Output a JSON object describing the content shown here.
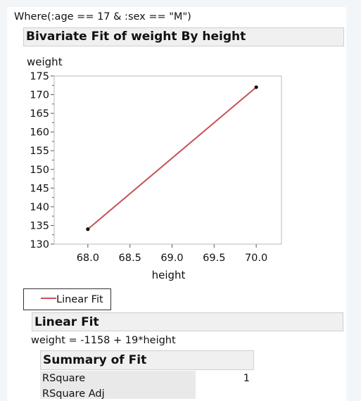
{
  "where_clause": "Where(:age == 17 & :sex == \"M\")",
  "report": {
    "title": "Bivariate Fit of weight By height"
  },
  "chart_data": {
    "type": "line",
    "xlabel": "height",
    "ylabel": "weight",
    "xlim": [
      67.6,
      70.3
    ],
    "ylim": [
      130,
      175
    ],
    "xticks": [
      68.0,
      68.5,
      69.0,
      69.5,
      70.0
    ],
    "xtick_labels": [
      "68.0",
      "68.5",
      "69.0",
      "69.5",
      "70.0"
    ],
    "yticks": [
      130,
      135,
      140,
      145,
      150,
      155,
      160,
      165,
      170,
      175
    ],
    "ytick_labels": [
      "130",
      "135",
      "140",
      "145",
      "150",
      "155",
      "160",
      "165",
      "170",
      "175"
    ],
    "points": [
      {
        "x": 68,
        "y": 134
      },
      {
        "x": 70,
        "y": 172
      }
    ],
    "fit_line": {
      "x": [
        68,
        70
      ],
      "y": [
        134,
        172
      ]
    },
    "grid": false,
    "colors": {
      "fit": "#c8505a",
      "points": "#111111"
    }
  },
  "legend": {
    "label": "Linear Fit"
  },
  "linear_fit": {
    "title": "Linear Fit",
    "equation": "weight = -1158 + 19*height"
  },
  "summary_of_fit": {
    "title": "Summary of Fit",
    "rows": [
      {
        "label": "RSquare",
        "value": "1"
      },
      {
        "label": "RSquare Adj",
        "value": ""
      }
    ]
  }
}
